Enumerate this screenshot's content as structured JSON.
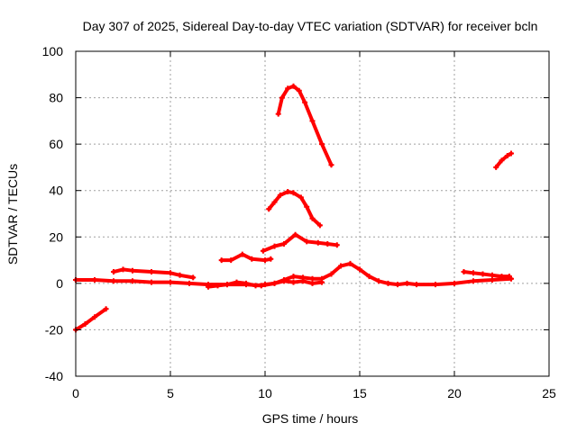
{
  "chart_data": {
    "type": "line",
    "title": "Day 307 of 2025, Sidereal Day-to-day VTEC variation (SDTVAR) for receiver bcln",
    "xlabel": "GPS time / hours",
    "ylabel": "SDTVAR / TECUs",
    "xlim": [
      0,
      25
    ],
    "ylim": [
      -40,
      100
    ],
    "xticks": [
      "0",
      "5",
      "10",
      "15",
      "20",
      "25"
    ],
    "yticks": [
      "-40",
      "-20",
      "0",
      "20",
      "40",
      "60",
      "80",
      "100"
    ],
    "grid": true,
    "color": "#ff0000",
    "series": [
      {
        "name": "segment-1",
        "x": [
          0,
          0.5,
          1.0,
          1.6
        ],
        "y": [
          -20,
          -17.5,
          -14.5,
          -11
        ]
      },
      {
        "name": "segment-2",
        "x": [
          10.7,
          10.9,
          11.2,
          11.5,
          11.8,
          12.1,
          12.5,
          13.0,
          13.5
        ],
        "y": [
          73,
          80,
          84,
          85,
          83,
          78,
          70,
          60,
          51
        ]
      },
      {
        "name": "segment-3",
        "x": [
          10.2,
          10.5,
          10.8,
          11.2,
          11.5,
          11.9,
          12.2,
          12.5,
          12.9
        ],
        "y": [
          32,
          35,
          38,
          39.5,
          39,
          37,
          33,
          28,
          25
        ]
      },
      {
        "name": "segment-4",
        "x": [
          7.7,
          8.2,
          8.8,
          9.3,
          10.0,
          10.3
        ],
        "y": [
          10,
          10,
          12.5,
          10.5,
          10,
          10.5
        ]
      },
      {
        "name": "segment-5",
        "x": [
          9.9,
          10.5,
          11.0,
          11.6,
          12.2,
          12.8,
          13.3,
          13.8
        ],
        "y": [
          14,
          16,
          17,
          21,
          18,
          17.5,
          17,
          16.5
        ]
      },
      {
        "name": "segment-6",
        "x": [
          2.0,
          2.5,
          3.0,
          4.0,
          5.0,
          5.5,
          6.2
        ],
        "y": [
          5,
          6,
          5.5,
          5,
          4.5,
          3.5,
          2.5
        ]
      },
      {
        "name": "segment-7",
        "x": [
          0,
          1,
          2,
          3,
          4,
          5,
          6,
          7,
          8,
          9,
          9.8,
          10.5,
          11.0,
          11.5,
          12.0,
          12.5,
          13.0,
          13.5,
          14.0,
          14.5,
          15.0,
          15.5,
          16.0,
          16.5,
          17.0,
          17.5,
          18.0,
          19.0,
          20.0,
          21.0,
          22.0,
          23.0
        ],
        "y": [
          1.5,
          1.5,
          1,
          1,
          0.5,
          0.5,
          0,
          -0.5,
          -0.5,
          -0.5,
          -1,
          0,
          1.5,
          3,
          2.5,
          2,
          2,
          4,
          7.5,
          8.5,
          6,
          3,
          1,
          0,
          -0.5,
          0,
          -0.5,
          -0.5,
          0,
          1,
          1.5,
          2
        ]
      },
      {
        "name": "segment-8",
        "x": [
          7.0,
          7.5,
          8.0,
          8.5,
          9.0,
          9.5,
          10.0,
          10.5,
          11.0,
          11.5,
          12.0,
          12.5,
          13.0
        ],
        "y": [
          -1.5,
          -1,
          -0.5,
          0.5,
          0,
          -1,
          -0.5,
          0,
          1,
          0.5,
          1,
          0,
          0.5
        ]
      },
      {
        "name": "segment-9",
        "x": [
          20.5,
          21.0,
          21.5,
          22.0,
          22.5,
          22.9
        ],
        "y": [
          5,
          4.5,
          4,
          3.5,
          3,
          3
        ]
      },
      {
        "name": "segment-10",
        "x": [
          22.2,
          22.5,
          22.8,
          23.0
        ],
        "y": [
          50,
          53,
          55,
          56
        ]
      }
    ]
  }
}
